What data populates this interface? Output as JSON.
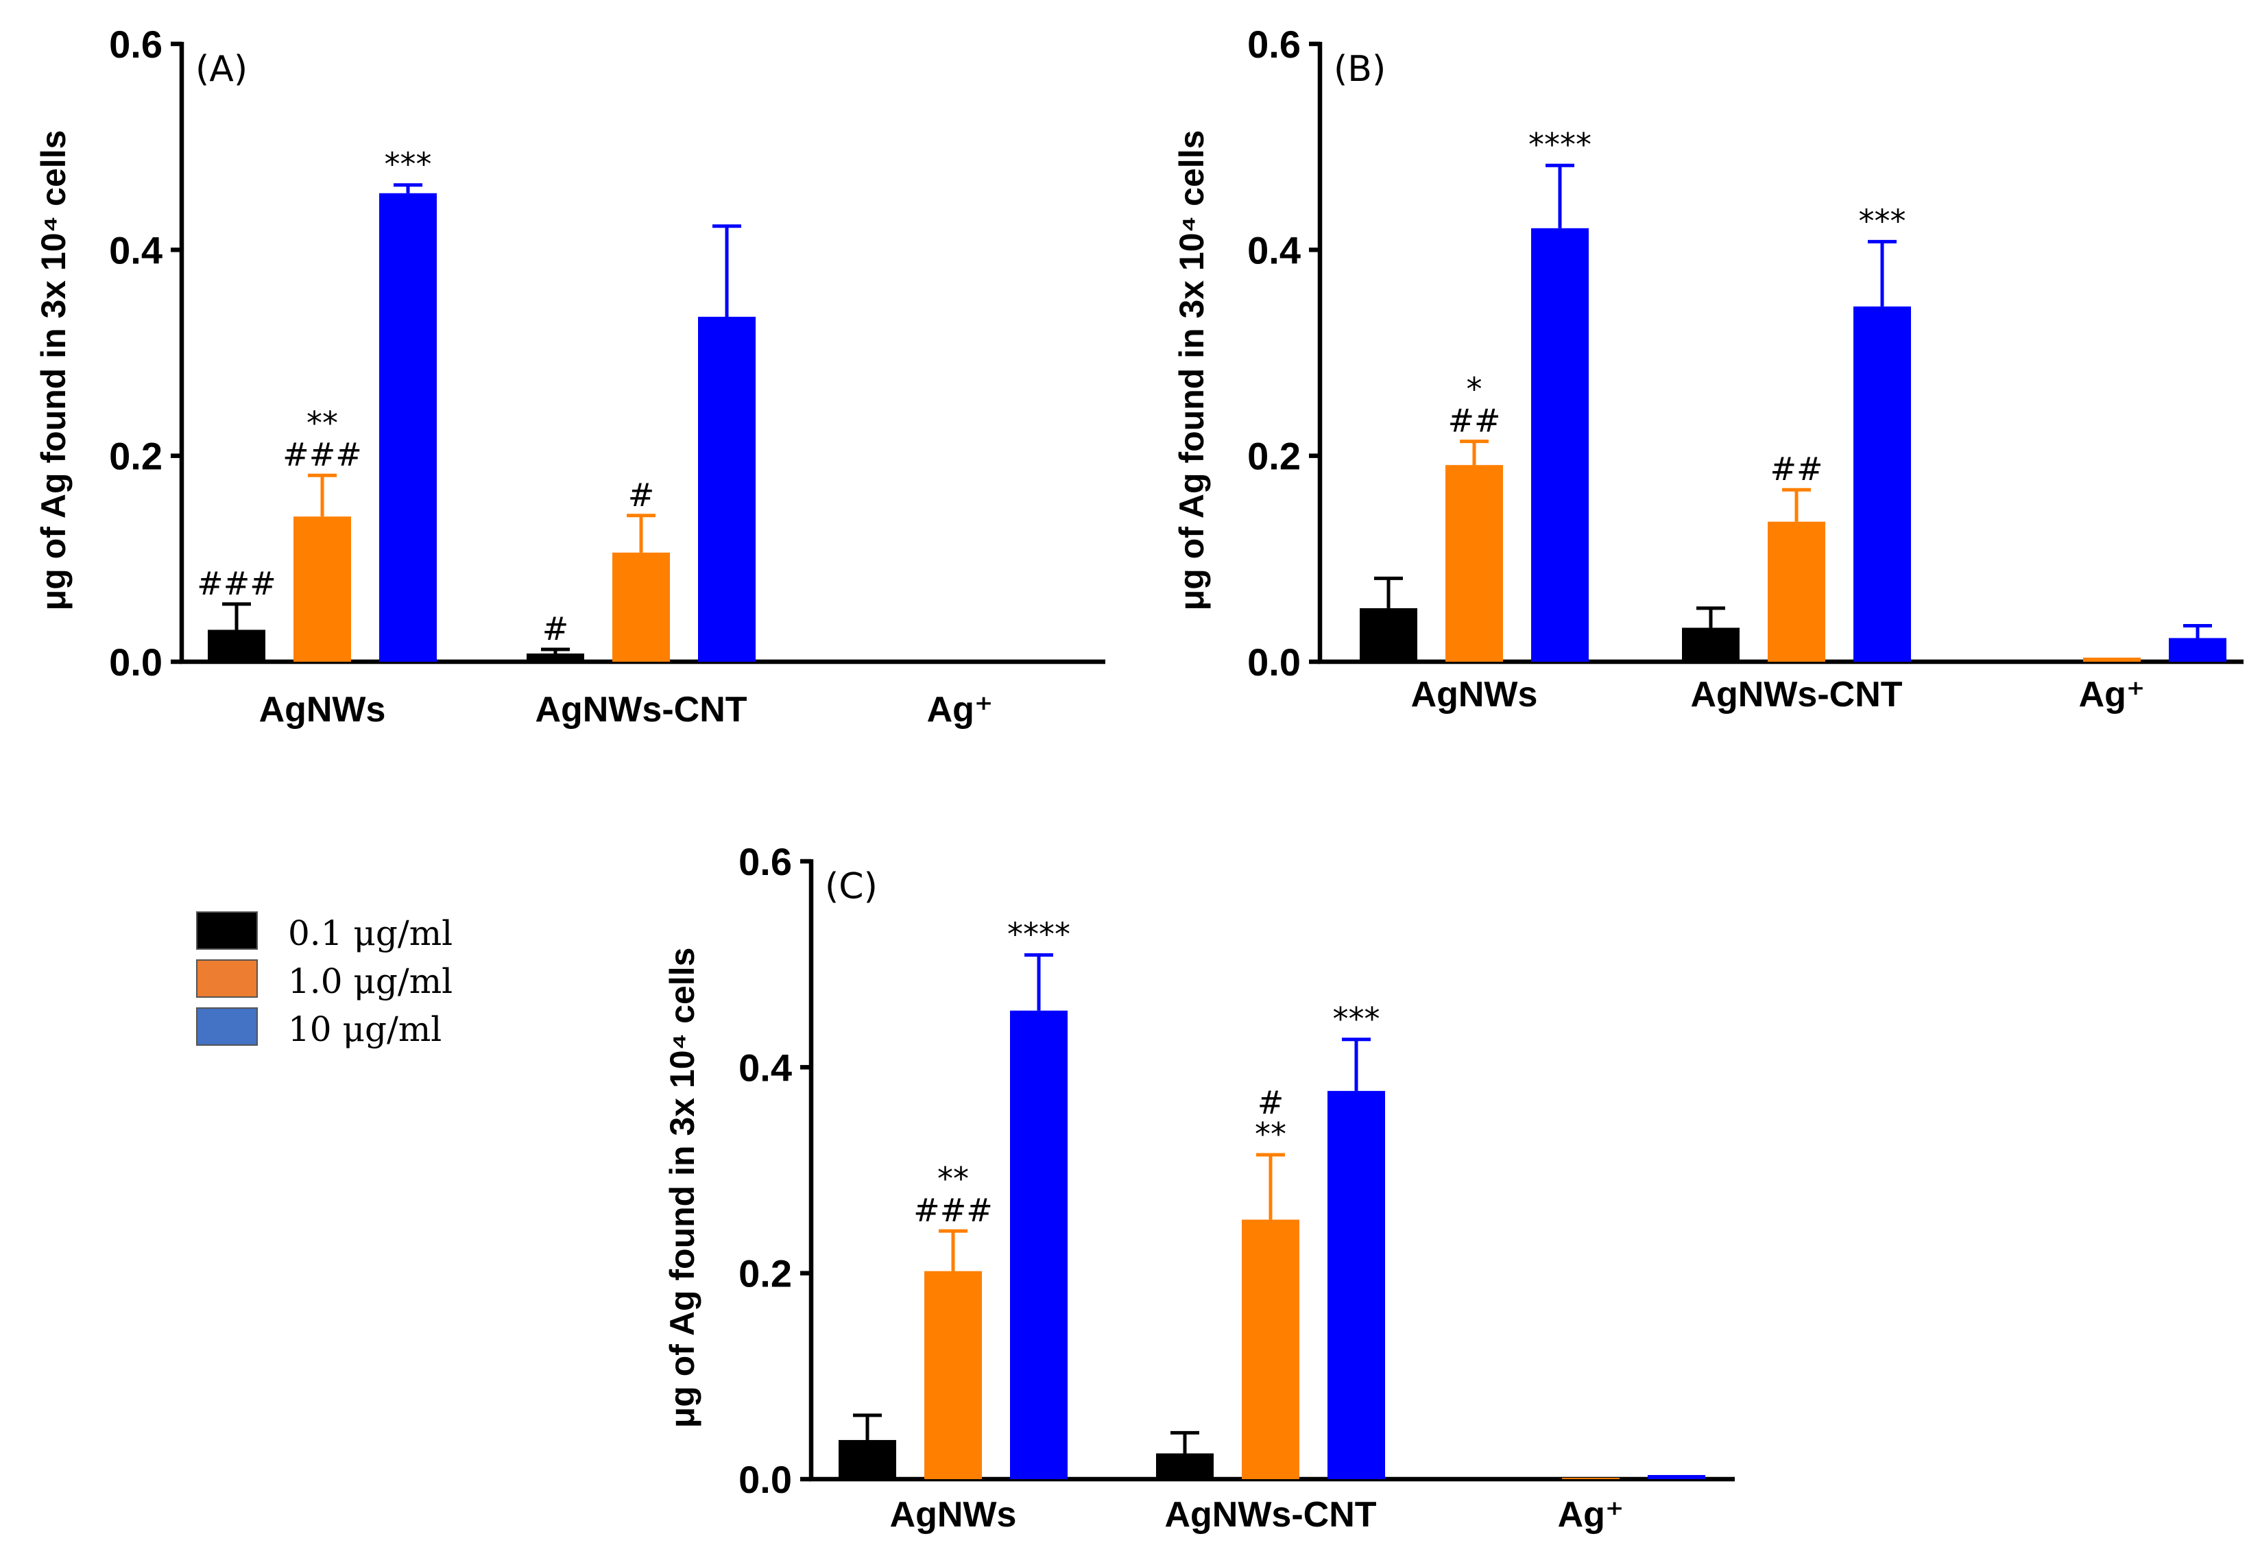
{
  "colors": {
    "series": [
      "#000000",
      "#ff7f00",
      "#0000ff"
    ],
    "legend": [
      "#000000",
      "#ed7d31",
      "#4472c4"
    ]
  },
  "legend": {
    "entries": [
      "0.1 μg/ml",
      "1.0 μg/ml",
      "10 μg/ml"
    ]
  },
  "chart_data": [
    {
      "type": "bar",
      "panel_label": "(A)",
      "ylabel": "μg of Ag found in 3x 10⁴ cells",
      "ylim": [
        0,
        0.6
      ],
      "yticks": [
        "0.0",
        "0.2",
        "0.4",
        "0.6"
      ],
      "ytick_values": [
        0,
        0.2,
        0.4,
        0.6
      ],
      "categories": [
        "AgNWs",
        "AgNWs-CNT",
        "Ag⁺"
      ],
      "series": [
        {
          "name": "0.1 μg/ml",
          "values": [
            0.031,
            0.008,
            null
          ],
          "errors": [
            0.025,
            0.004,
            null
          ],
          "annotations": [
            "###",
            "#",
            ""
          ]
        },
        {
          "name": "1.0 μg/ml",
          "values": [
            0.141,
            0.106,
            null
          ],
          "errors": [
            0.04,
            0.036,
            null
          ],
          "annotations": [
            "**\n###",
            "#",
            ""
          ]
        },
        {
          "name": "10 μg/ml",
          "values": [
            0.455,
            0.335,
            null
          ],
          "errors": [
            0.008,
            0.088,
            null
          ],
          "annotations": [
            "***",
            "",
            ""
          ]
        }
      ]
    },
    {
      "type": "bar",
      "panel_label": "(B)",
      "ylabel": "μg of Ag found in 3x 10⁴ cells",
      "ylim": [
        0,
        0.6
      ],
      "yticks": [
        "0.0",
        "0.2",
        "0.4",
        "0.6"
      ],
      "ytick_values": [
        0,
        0.2,
        0.4,
        0.6
      ],
      "categories": [
        "AgNWs",
        "AgNWs-CNT",
        "Ag⁺"
      ],
      "series": [
        {
          "name": "0.1 μg/ml",
          "values": [
            0.052,
            0.033,
            0.001
          ],
          "errors": [
            0.029,
            0.019,
            0
          ],
          "annotations": [
            "",
            "",
            ""
          ]
        },
        {
          "name": "1.0 μg/ml",
          "values": [
            0.191,
            0.136,
            0.004
          ],
          "errors": [
            0.023,
            0.031,
            0
          ],
          "annotations": [
            "*\n##",
            "##",
            ""
          ]
        },
        {
          "name": "10 μg/ml",
          "values": [
            0.421,
            0.345,
            0.023
          ],
          "errors": [
            0.061,
            0.063,
            0.012
          ],
          "annotations": [
            "****",
            "***",
            ""
          ]
        }
      ]
    },
    {
      "type": "bar",
      "panel_label": "(C)",
      "ylabel": "μg of Ag found in 3x 10⁴ cells",
      "ylim": [
        0,
        0.6
      ],
      "yticks": [
        "0.0",
        "0.2",
        "0.4",
        "0.6"
      ],
      "ytick_values": [
        0,
        0.2,
        0.4,
        0.6
      ],
      "categories": [
        "AgNWs",
        "AgNWs-CNT",
        "Ag⁺"
      ],
      "series": [
        {
          "name": "0.1 μg/ml",
          "values": [
            0.038,
            0.025,
            0.001
          ],
          "errors": [
            0.024,
            0.02,
            0
          ],
          "annotations": [
            "",
            "",
            ""
          ]
        },
        {
          "name": "1.0 μg/ml",
          "values": [
            0.202,
            0.252,
            0.001
          ],
          "errors": [
            0.039,
            0.063,
            0
          ],
          "annotations": [
            "**\n###",
            "#\n**",
            ""
          ]
        },
        {
          "name": "10 μg/ml",
          "values": [
            0.455,
            0.377,
            0.004
          ],
          "errors": [
            0.054,
            0.05,
            0
          ],
          "annotations": [
            "****",
            "***",
            ""
          ]
        }
      ]
    }
  ]
}
